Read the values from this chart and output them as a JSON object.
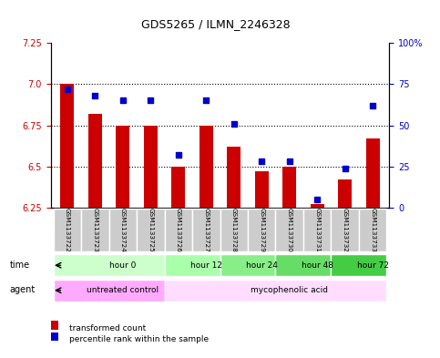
{
  "title": "GDS5265 / ILMN_2246328",
  "samples": [
    "GSM1133722",
    "GSM1133723",
    "GSM1133724",
    "GSM1133725",
    "GSM1133726",
    "GSM1133727",
    "GSM1133728",
    "GSM1133729",
    "GSM1133730",
    "GSM1133731",
    "GSM1133732",
    "GSM1133733"
  ],
  "transformed_count": [
    7.0,
    6.82,
    6.75,
    6.75,
    6.5,
    6.75,
    6.62,
    6.47,
    6.5,
    6.27,
    6.42,
    6.67
  ],
  "percentile_rank": [
    72,
    68,
    65,
    65,
    32,
    65,
    51,
    28,
    28,
    5,
    24,
    62
  ],
  "ylim_left": [
    6.25,
    7.25
  ],
  "ylim_right": [
    0,
    100
  ],
  "yticks_left": [
    6.25,
    6.5,
    6.75,
    7.0,
    7.25
  ],
  "yticks_right": [
    0,
    25,
    50,
    75,
    100
  ],
  "bar_color": "#cc0000",
  "dot_color": "#0000cc",
  "bar_bottom": 6.25,
  "time_groups": [
    {
      "label": "hour 0",
      "start": 0,
      "end": 4,
      "color": "#ccffcc"
    },
    {
      "label": "hour 12",
      "start": 4,
      "end": 6,
      "color": "#aaffaa"
    },
    {
      "label": "hour 24",
      "start": 6,
      "end": 8,
      "color": "#88ee88"
    },
    {
      "label": "hour 48",
      "start": 8,
      "end": 10,
      "color": "#66dd66"
    },
    {
      "label": "hour 72",
      "start": 10,
      "end": 12,
      "color": "#44cc44"
    }
  ],
  "agent_groups": [
    {
      "label": "untreated control",
      "start": 0,
      "end": 4,
      "color": "#ffaaff"
    },
    {
      "label": "mycophenolic acid",
      "start": 4,
      "end": 12,
      "color": "#ffddff"
    }
  ],
  "left_axis_color": "#cc0000",
  "right_axis_color": "#0000cc",
  "sample_bg_color": "#cccccc",
  "legend_red_label": "transformed count",
  "legend_blue_label": "percentile rank within the sample"
}
